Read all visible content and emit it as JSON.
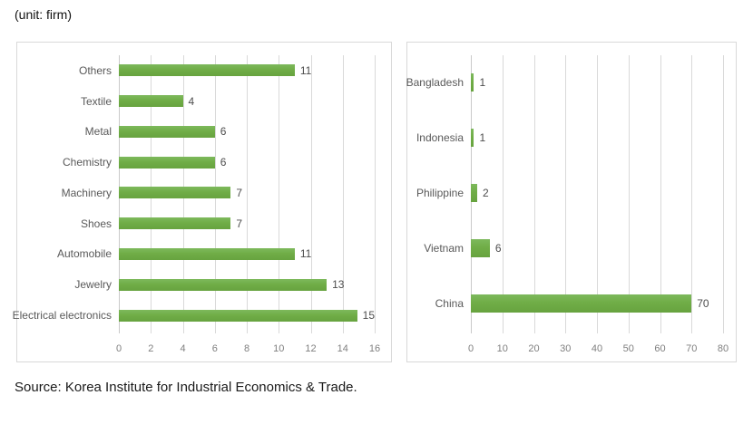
{
  "page": {
    "unit_label": "(unit: firm)",
    "source_text": "Source: Korea Institute for Industrial Economics & Trade."
  },
  "colors": {
    "bar_green": "#70ad47",
    "gridline": "#d9d9d9",
    "panel_border": "#d9d9d9",
    "category_text": "#595959",
    "tick_text": "#7f7f7f",
    "value_text": "#4d4d4d"
  },
  "chart_data": [
    {
      "type": "bar",
      "orientation": "horizontal",
      "title": "",
      "categories": [
        "Others",
        "Textile",
        "Metal",
        "Chemistry",
        "Machinery",
        "Shoes",
        "Automobile",
        "Jewelry",
        "Electrical electronics"
      ],
      "values": [
        11,
        4,
        6,
        6,
        7,
        7,
        11,
        13,
        15
      ],
      "xlim": [
        0,
        16
      ],
      "xticks": [
        0,
        2,
        4,
        6,
        8,
        10,
        12,
        14,
        16
      ],
      "grid": true,
      "data_labels": true,
      "legend": "none"
    },
    {
      "type": "bar",
      "orientation": "horizontal",
      "title": "",
      "categories": [
        "Bangladesh",
        "Indonesia",
        "Philippine",
        "Vietnam",
        "China"
      ],
      "values": [
        1,
        1,
        2,
        6,
        70
      ],
      "xlim": [
        0,
        80
      ],
      "xticks": [
        0,
        10,
        20,
        30,
        40,
        50,
        60,
        70,
        80
      ],
      "grid": true,
      "data_labels": true,
      "legend": "none"
    }
  ]
}
